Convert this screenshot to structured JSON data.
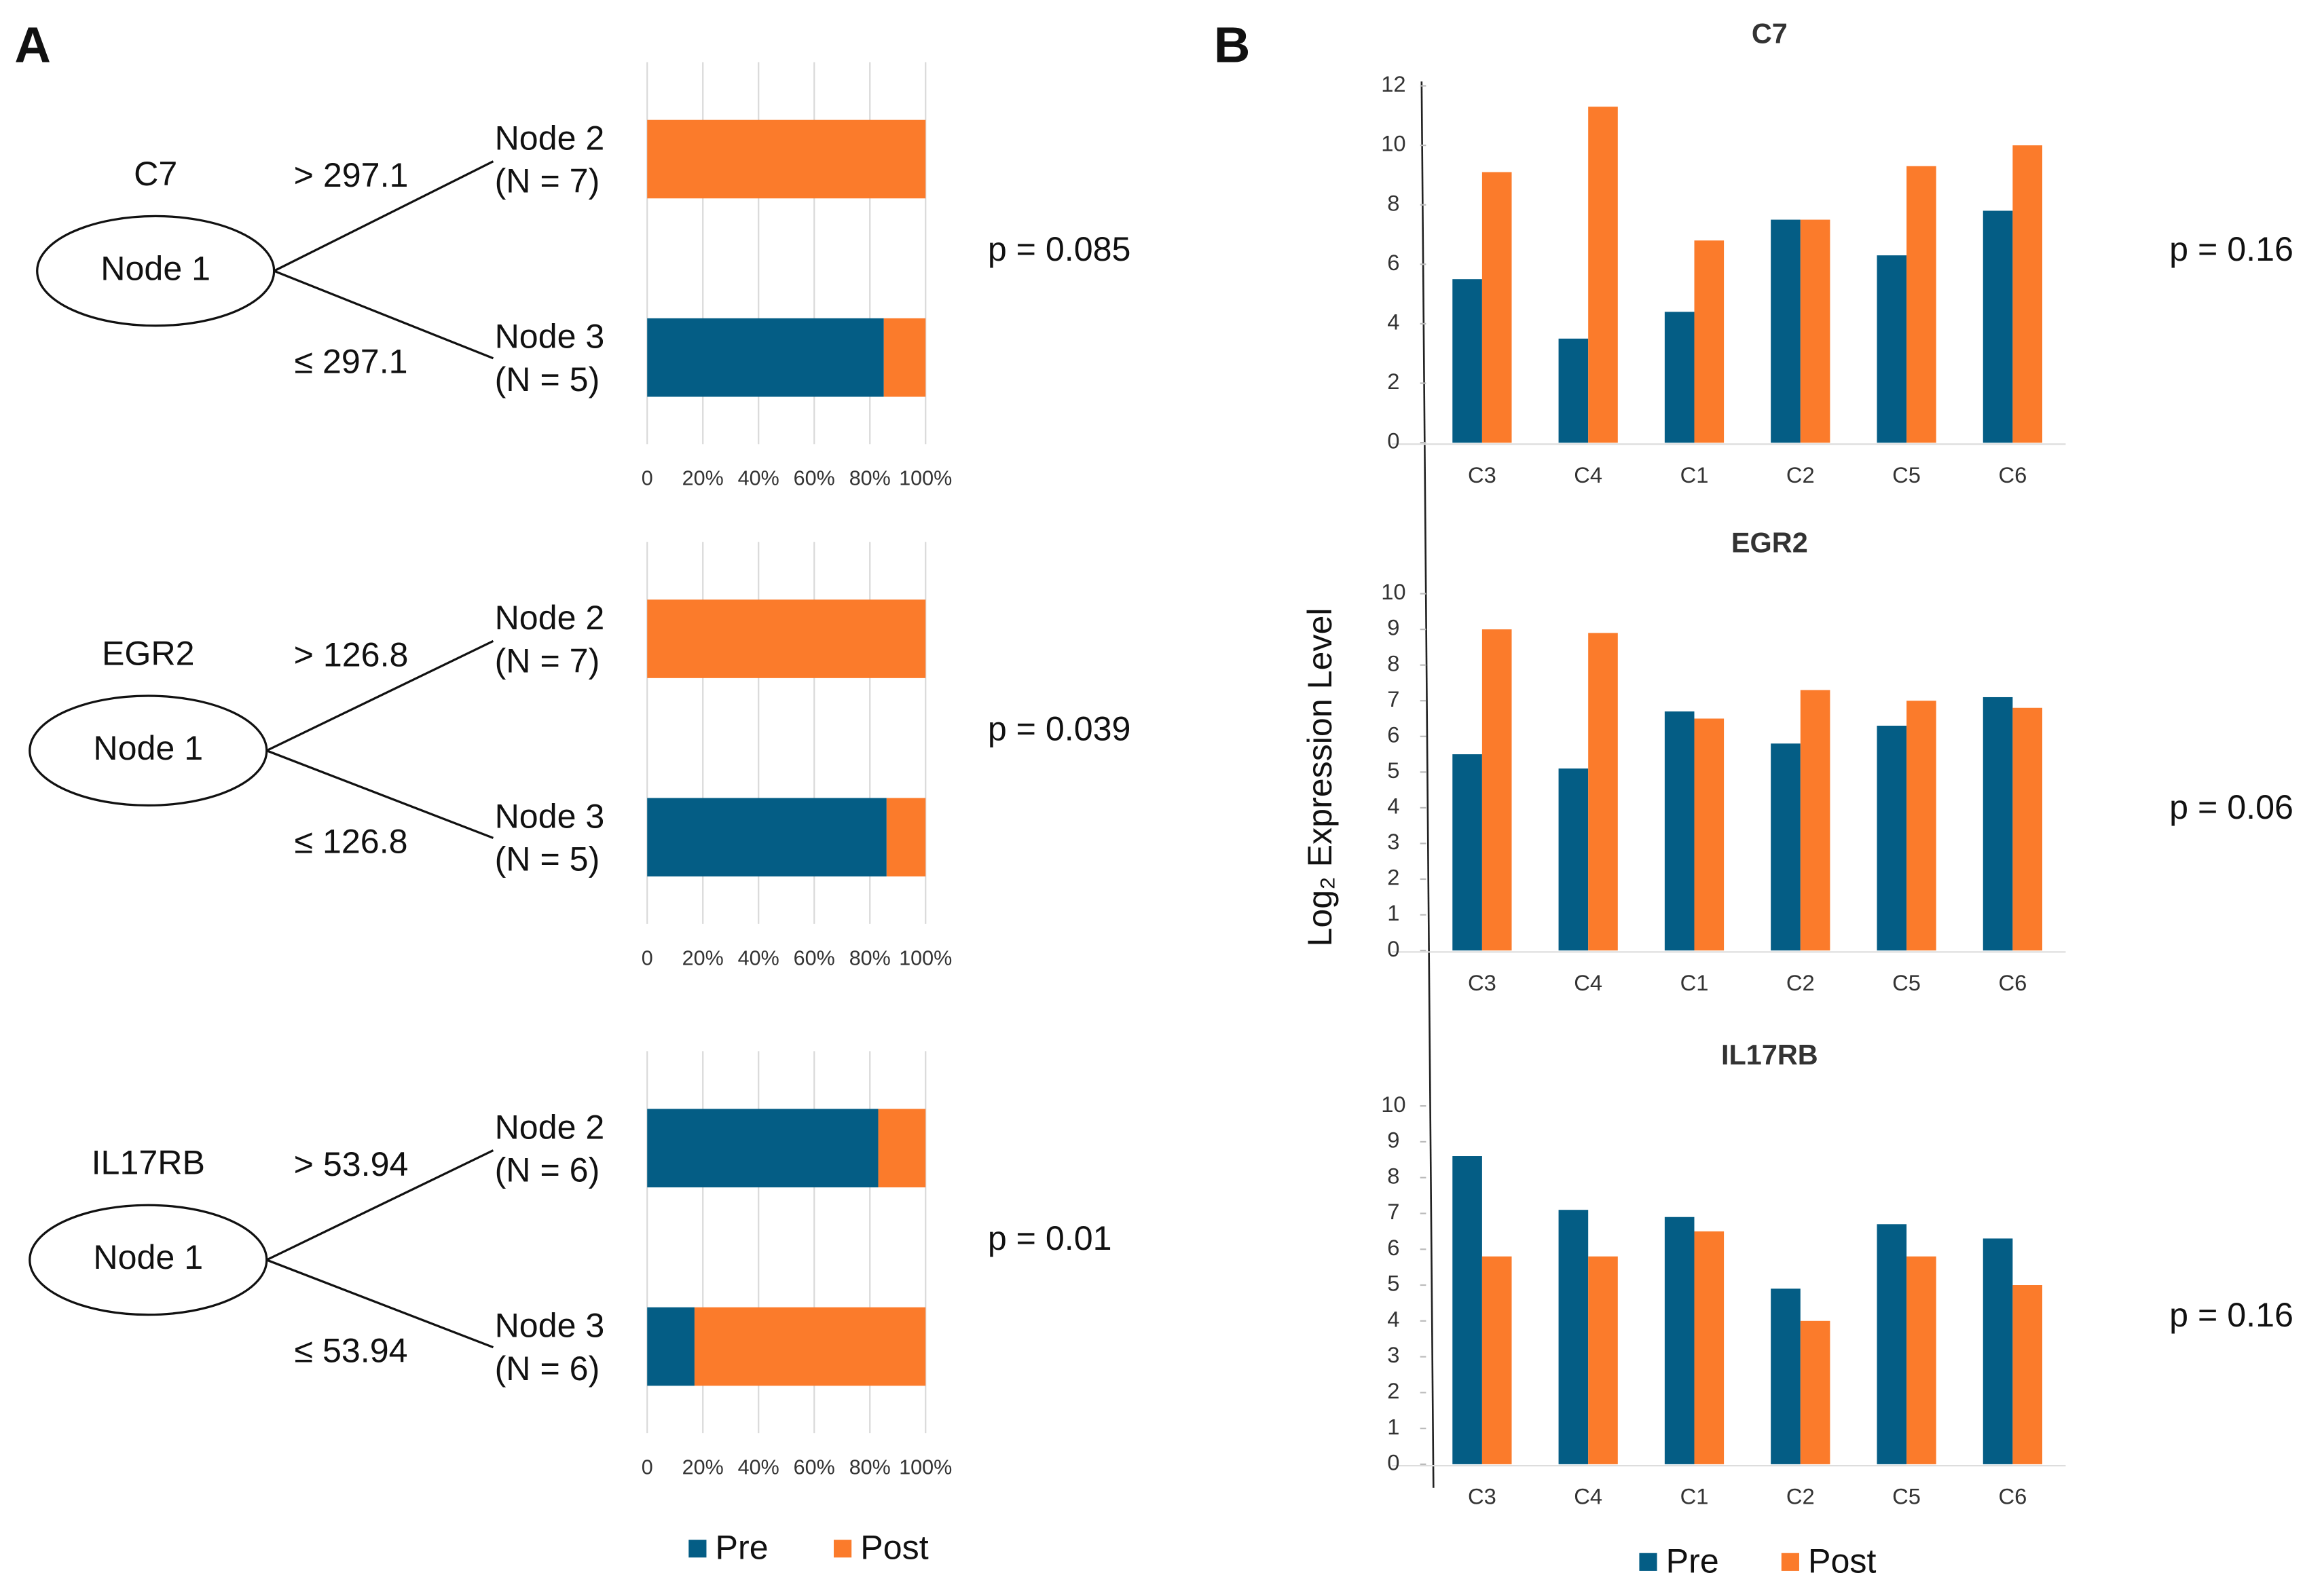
{
  "chart_data": [
    {
      "type": "stacked_barh",
      "panel_label": "A",
      "series": [
        {
          "name": "Pre",
          "color": "#045d85"
        },
        {
          "name": "Post",
          "color": "#fb7b2b"
        }
      ],
      "xlim": [
        0,
        100
      ],
      "xticks": [
        0,
        {
          "value": 20,
          "label": "20%"
        },
        {
          "value": 40,
          "label": "40%"
        },
        {
          "value": 60,
          "label": "60%"
        },
        {
          "value": 80,
          "label": "80%"
        },
        {
          "value": 100,
          "label": "100%"
        }
      ],
      "grid": true,
      "subplots": [
        {
          "gene": "C7",
          "root": "Node 1",
          "splits": [
            "> 297.1",
            "≤ 297.1"
          ],
          "categories": [
            "Node 2",
            "Node 3"
          ],
          "counts": [
            "(N = 7)",
            "(N = 5)"
          ],
          "values": [
            [
              0,
              85
            ],
            [
              100,
              15
            ]
          ],
          "p_value": "p = 0.085"
        },
        {
          "gene": "EGR2",
          "root": "Node 1",
          "splits": [
            "> 126.8",
            "≤ 126.8"
          ],
          "categories": [
            "Node 2",
            "Node 3"
          ],
          "counts": [
            "(N = 7)",
            "(N = 5)"
          ],
          "values": [
            [
              0,
              86
            ],
            [
              100,
              14
            ]
          ],
          "p_value": "p = 0.039"
        },
        {
          "gene": "IL17RB",
          "root": "Node 1",
          "splits": [
            "> 53.94",
            "≤ 53.94"
          ],
          "categories": [
            "Node 2",
            "Node 3"
          ],
          "counts": [
            "(N = 6)",
            "(N = 6)"
          ],
          "values": [
            [
              83,
              17
            ],
            [
              17,
              83
            ]
          ],
          "p_value": "p = 0.01"
        }
      ]
    },
    {
      "type": "grouped_bar",
      "panel_label": "B",
      "y_label": "Log₂ Expression Level",
      "series": [
        {
          "name": "Pre",
          "color": "#045d85"
        },
        {
          "name": "Post",
          "color": "#fb7b2b"
        }
      ],
      "subplots": [
        {
          "title": "C7",
          "categories": [
            "C3",
            "C4",
            "C1",
            "C2",
            "C5",
            "C6"
          ],
          "values": [
            [
              5.5,
              3.5,
              4.4,
              7.5,
              6.3,
              7.8
            ],
            [
              9.1,
              11.3,
              6.8,
              7.5,
              9.3,
              10.0
            ]
          ],
          "ylim": [
            0,
            12
          ],
          "yticks": [
            0,
            2,
            4,
            6,
            8,
            10,
            12
          ],
          "p_value": "p = 0.16"
        },
        {
          "title": "EGR2",
          "categories": [
            "C3",
            "C4",
            "C1",
            "C2",
            "C5",
            "C6"
          ],
          "values": [
            [
              5.5,
              5.1,
              6.7,
              5.8,
              6.3,
              7.1
            ],
            [
              9.0,
              8.9,
              6.5,
              7.3,
              7.0,
              6.8
            ]
          ],
          "ylim": [
            0,
            10
          ],
          "yticks": [
            0,
            1,
            2,
            3,
            4,
            5,
            6,
            7,
            8,
            9,
            10
          ],
          "p_value": "p = 0.06"
        },
        {
          "title": "IL17RB",
          "categories": [
            "C3",
            "C4",
            "C1",
            "C2",
            "C5",
            "C6"
          ],
          "values": [
            [
              8.6,
              7.1,
              6.9,
              4.9,
              6.7,
              6.3
            ],
            [
              5.8,
              5.8,
              6.5,
              4.0,
              5.8,
              5.0
            ]
          ],
          "ylim": [
            0,
            10
          ],
          "yticks": [
            0,
            1,
            2,
            3,
            4,
            5,
            6,
            7,
            8,
            9,
            10
          ],
          "p_value": "p = 0.16"
        }
      ]
    }
  ]
}
